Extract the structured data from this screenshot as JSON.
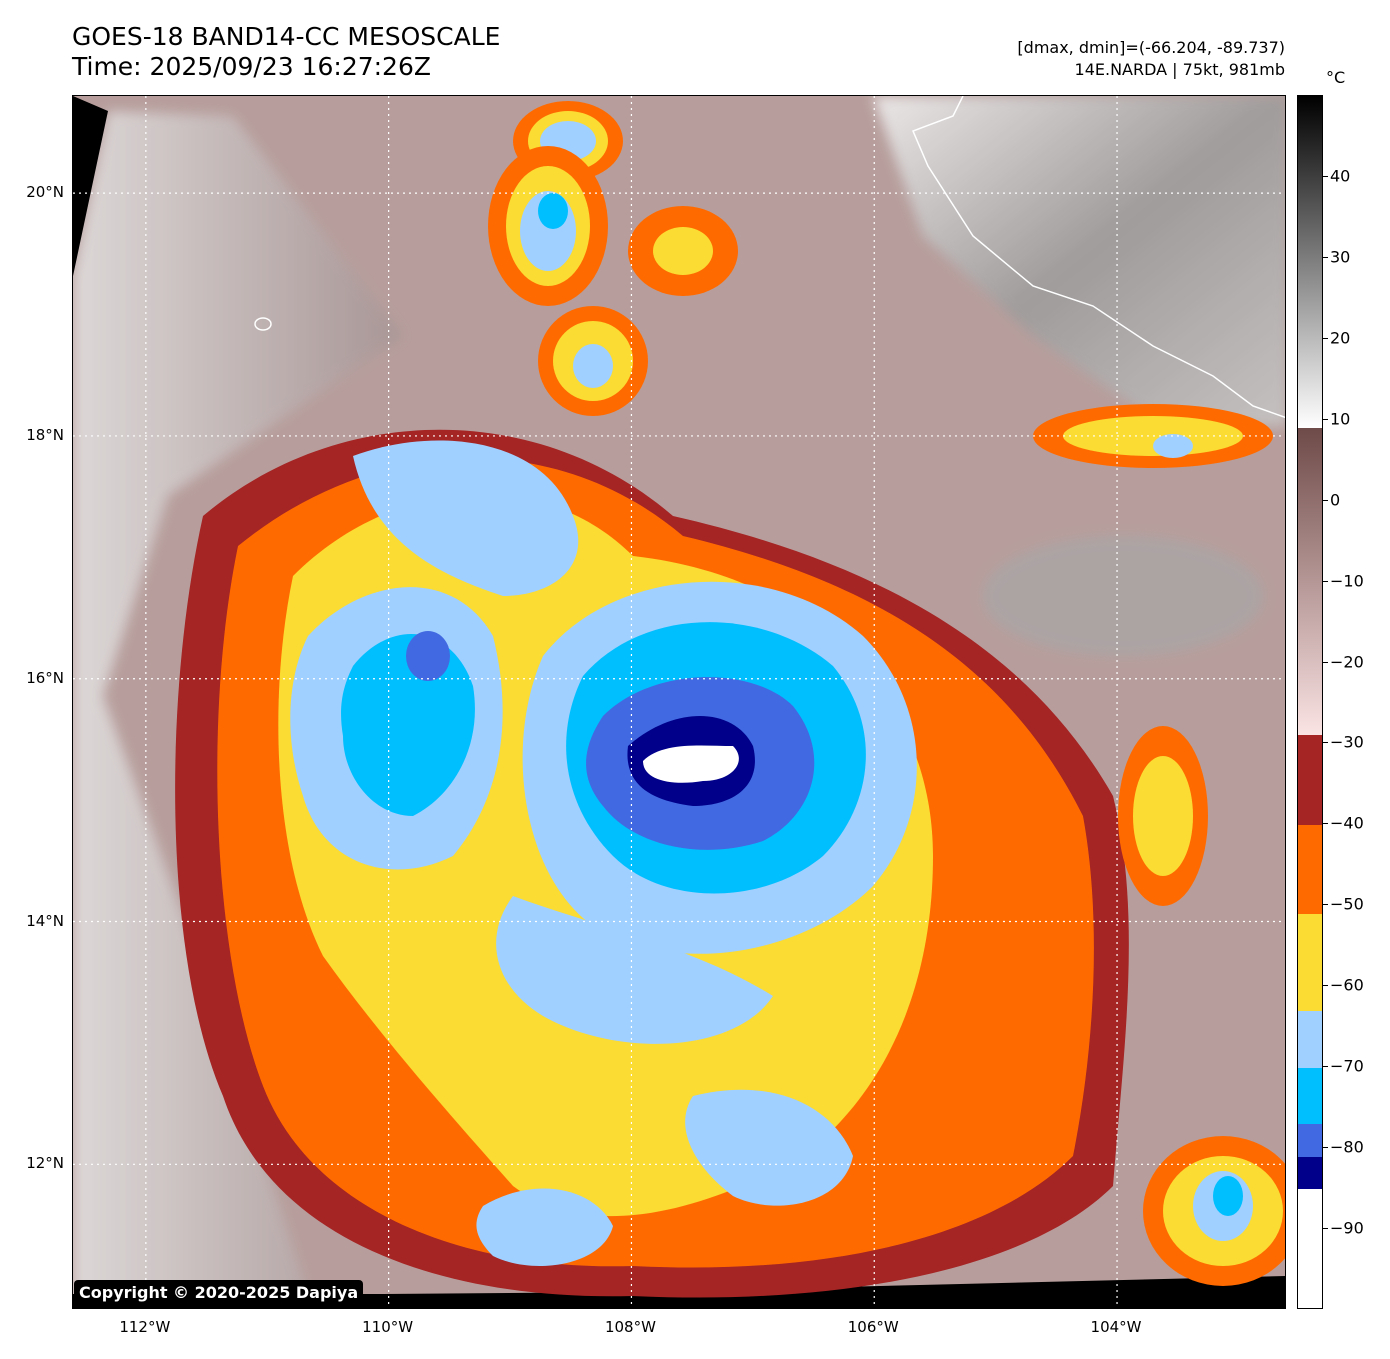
{
  "header": {
    "title_line1": "GOES-18 BAND14-CC MESOSCALE",
    "title_line2": "Time: 2025/09/23 16:27:26Z",
    "info_line1": "[dmax, dmin]=(-66.204, -89.737)",
    "info_line2": "14E.NARDA | 75kt, 981mb"
  },
  "map": {
    "lon_range": [
      -112.6,
      -102.6
    ],
    "lat_range": [
      10.8,
      20.8
    ],
    "lat_labels": [
      {
        "value": 20,
        "text": "20°N"
      },
      {
        "value": 18,
        "text": "18°N"
      },
      {
        "value": 16,
        "text": "16°N"
      },
      {
        "value": 14,
        "text": "14°N"
      },
      {
        "value": 12,
        "text": "12°N"
      }
    ],
    "lon_labels": [
      {
        "value": -112,
        "text": "112°W"
      },
      {
        "value": -110,
        "text": "110°W"
      },
      {
        "value": -108,
        "text": "108°W"
      },
      {
        "value": -106,
        "text": "106°W"
      },
      {
        "value": -104,
        "text": "104°W"
      }
    ],
    "storm_center": {
      "lat": 15.25,
      "lon": -107.55
    },
    "copyright": "Copyright © 2020-2025 Dapiya"
  },
  "colorbar": {
    "unit": "°C",
    "range": [
      -100,
      50
    ],
    "ticks": [
      {
        "value": 40,
        "text": "40"
      },
      {
        "value": 30,
        "text": "30"
      },
      {
        "value": 20,
        "text": "20"
      },
      {
        "value": 10,
        "text": "10"
      },
      {
        "value": 0,
        "text": "0"
      },
      {
        "value": -10,
        "text": "−10"
      },
      {
        "value": -20,
        "text": "−20"
      },
      {
        "value": -30,
        "text": "−30"
      },
      {
        "value": -40,
        "text": "−40"
      },
      {
        "value": -50,
        "text": "−50"
      },
      {
        "value": -60,
        "text": "−60"
      },
      {
        "value": -70,
        "text": "−70"
      },
      {
        "value": -80,
        "text": "−80"
      },
      {
        "value": -90,
        "text": "−90"
      }
    ],
    "bands": [
      {
        "from": -100,
        "to": -85,
        "color": "#ffffff"
      },
      {
        "from": -85,
        "to": -81,
        "color": "#00008b"
      },
      {
        "from": -81,
        "to": -77,
        "color": "#4169e1"
      },
      {
        "from": -77,
        "to": -70,
        "color": "#00bfff"
      },
      {
        "from": -70,
        "to": -63,
        "color": "#a0d0ff"
      },
      {
        "from": -63,
        "to": -51,
        "color": "#fbdc32"
      },
      {
        "from": -51,
        "to": -40,
        "color": "#ff6a00"
      },
      {
        "from": -40,
        "to": -29,
        "color": "#a52424"
      }
    ],
    "gradients": [
      {
        "from": -29,
        "to": 9,
        "color_from": "#fbe4e4",
        "color_to": "#6e4a48"
      },
      {
        "from": 9,
        "to": 50,
        "color_from": "#ffffff",
        "color_to": "#000000"
      }
    ]
  }
}
